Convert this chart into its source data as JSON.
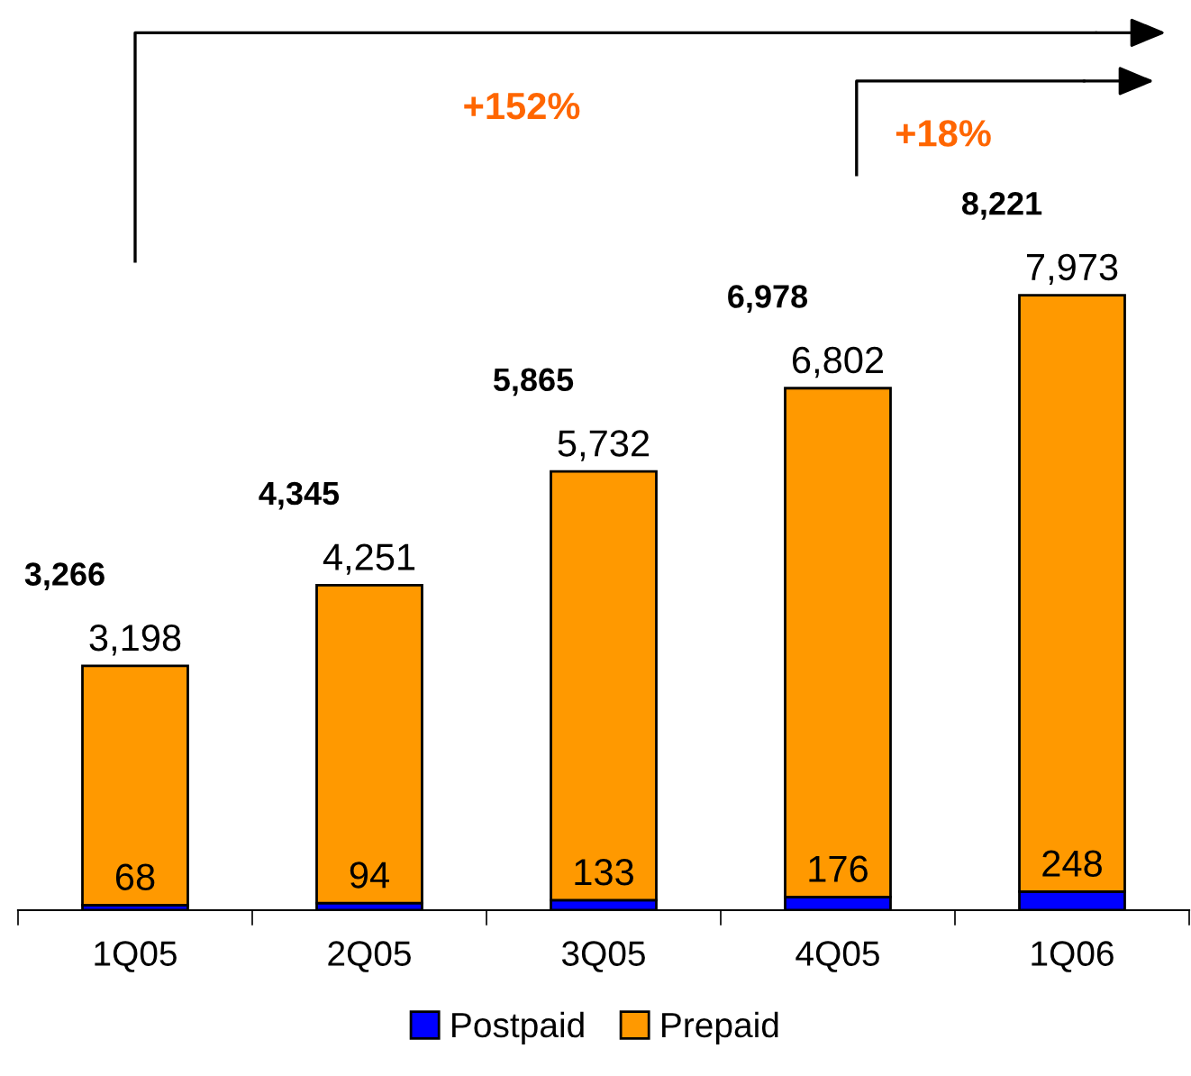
{
  "chart_data": {
    "type": "bar",
    "stacked": true,
    "categories": [
      "1Q05",
      "2Q05",
      "3Q05",
      "4Q05",
      "1Q06"
    ],
    "series": [
      {
        "name": "Postpaid",
        "color": "#0000ff",
        "values": [
          68,
          94,
          133,
          176,
          248
        ],
        "value_labels": [
          "68",
          "94",
          "133",
          "176",
          "248"
        ]
      },
      {
        "name": "Prepaid",
        "color": "#ff9900",
        "values": [
          3198,
          4251,
          5732,
          6802,
          7973
        ],
        "value_labels": [
          "3,198",
          "4,251",
          "5,732",
          "6,802",
          "7,973"
        ]
      }
    ],
    "totals": [
      "3,266",
      "4,345",
      "5,865",
      "6,978",
      "8,221"
    ],
    "annotations": [
      "+152%",
      "+18%"
    ],
    "legend": "bottom",
    "grid": false
  }
}
